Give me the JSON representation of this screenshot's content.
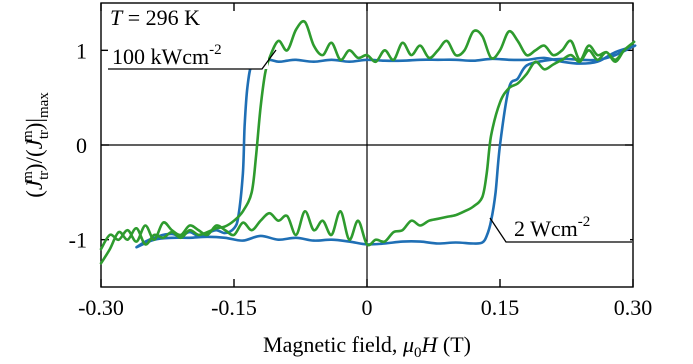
{
  "chart_data": {
    "type": "line",
    "title": "",
    "xlabel": "Magnetic field, μ0H (T)",
    "ylabel": "(J_tr^m)/(J_tr^m)|max",
    "xlim": [
      -0.3,
      0.3
    ],
    "ylim": [
      -1.5,
      1.5
    ],
    "x_ticks": [
      -0.3,
      -0.15,
      0,
      0.15,
      0.3
    ],
    "x_tick_labels": [
      "-0.30",
      "-0.15",
      "0",
      "0.15",
      "0.30"
    ],
    "y_ticks": [
      -1,
      0,
      1
    ],
    "y_tick_labels": [
      "-1",
      "0",
      "1"
    ],
    "grid": false,
    "zero_lines": true,
    "annotations": [
      {
        "text": "T = 296 K",
        "italic_prefix": "T",
        "rest": " = 296 K"
      },
      {
        "text": "100 kWcm-2",
        "base": "100 kWcm",
        "sup": "-2",
        "points_to": "green"
      },
      {
        "text": "2 Wcm-2",
        "base": "2 Wcm",
        "sup": "-2",
        "points_to": "blue"
      }
    ],
    "series": [
      {
        "color": "#1f6fb5",
        "points": [
          [
            -0.26,
            -1.08
          ],
          [
            -0.25,
            -1.02
          ],
          [
            -0.24,
            -0.98
          ],
          [
            -0.23,
            -0.95
          ],
          [
            -0.22,
            -0.94
          ],
          [
            -0.21,
            -0.96
          ],
          [
            -0.2,
            -0.92
          ],
          [
            -0.19,
            -0.96
          ],
          [
            -0.18,
            -0.93
          ],
          [
            -0.17,
            -0.9
          ],
          [
            -0.16,
            -0.93
          ],
          [
            -0.15,
            -0.88
          ],
          [
            -0.145,
            -0.75
          ],
          [
            -0.14,
            -0.3
          ],
          [
            -0.138,
            0.2
          ],
          [
            -0.135,
            0.6
          ],
          [
            -0.13,
            0.85
          ],
          [
            -0.12,
            0.89
          ],
          [
            -0.11,
            0.9
          ],
          [
            -0.1,
            0.88
          ],
          [
            -0.09,
            0.89
          ],
          [
            -0.08,
            0.9
          ],
          [
            -0.06,
            0.88
          ],
          [
            -0.04,
            0.9
          ],
          [
            -0.02,
            0.88
          ],
          [
            0.0,
            0.9
          ],
          [
            0.02,
            0.89
          ],
          [
            0.04,
            0.89
          ],
          [
            0.06,
            0.9
          ],
          [
            0.08,
            0.9
          ],
          [
            0.1,
            0.9
          ],
          [
            0.12,
            0.89
          ],
          [
            0.14,
            0.91
          ],
          [
            0.16,
            0.9
          ],
          [
            0.18,
            0.9
          ],
          [
            0.2,
            0.92
          ],
          [
            0.22,
            0.88
          ],
          [
            0.24,
            0.86
          ],
          [
            0.26,
            0.88
          ],
          [
            0.28,
            0.98
          ],
          [
            0.3,
            1.04
          ],
          [
            0.3,
            1.04
          ],
          [
            0.28,
            0.95
          ],
          [
            0.26,
            0.9
          ],
          [
            0.24,
            0.9
          ],
          [
            0.22,
            0.91
          ],
          [
            0.2,
            0.89
          ],
          [
            0.18,
            0.84
          ],
          [
            0.17,
            0.7
          ],
          [
            0.16,
            0.6
          ],
          [
            0.15,
            0.0
          ],
          [
            0.145,
            -0.5
          ],
          [
            0.14,
            -0.8
          ],
          [
            0.135,
            -0.96
          ],
          [
            0.13,
            -1.03
          ],
          [
            0.12,
            -1.04
          ],
          [
            0.1,
            -1.03
          ],
          [
            0.08,
            -1.04
          ],
          [
            0.06,
            -1.02
          ],
          [
            0.04,
            -1.02
          ],
          [
            0.02,
            -1.04
          ],
          [
            0.0,
            -1.05
          ],
          [
            -0.02,
            -1.02
          ],
          [
            -0.04,
            -1.0
          ],
          [
            -0.06,
            -1.01
          ],
          [
            -0.08,
            -0.98
          ],
          [
            -0.1,
            -1.0
          ],
          [
            -0.12,
            -0.96
          ],
          [
            -0.14,
            -1.01
          ],
          [
            -0.16,
            -0.98
          ],
          [
            -0.18,
            -0.97
          ],
          [
            -0.2,
            -0.98
          ],
          [
            -0.22,
            -0.98
          ],
          [
            -0.24,
            -1.0
          ],
          [
            -0.26,
            -1.08
          ]
        ]
      },
      {
        "color": "#2e9b2e",
        "points": [
          [
            -0.3,
            -1.25
          ],
          [
            -0.29,
            -1.1
          ],
          [
            -0.28,
            -0.92
          ],
          [
            -0.27,
            -1.0
          ],
          [
            -0.26,
            -0.88
          ],
          [
            -0.25,
            -1.05
          ],
          [
            -0.24,
            -0.95
          ],
          [
            -0.23,
            -0.98
          ],
          [
            -0.22,
            -0.92
          ],
          [
            -0.21,
            -0.98
          ],
          [
            -0.2,
            -0.9
          ],
          [
            -0.19,
            -0.95
          ],
          [
            -0.18,
            -0.92
          ],
          [
            -0.17,
            -0.88
          ],
          [
            -0.16,
            -0.86
          ],
          [
            -0.15,
            -0.8
          ],
          [
            -0.14,
            -0.7
          ],
          [
            -0.13,
            -0.5
          ],
          [
            -0.125,
            -0.1
          ],
          [
            -0.12,
            0.4
          ],
          [
            -0.115,
            0.75
          ],
          [
            -0.11,
            0.92
          ],
          [
            -0.1,
            1.1
          ],
          [
            -0.09,
            1.0
          ],
          [
            -0.08,
            1.22
          ],
          [
            -0.07,
            1.3
          ],
          [
            -0.06,
            1.05
          ],
          [
            -0.05,
            0.95
          ],
          [
            -0.04,
            1.08
          ],
          [
            -0.03,
            0.9
          ],
          [
            -0.02,
            1.0
          ],
          [
            -0.01,
            0.92
          ],
          [
            0.0,
            0.95
          ],
          [
            0.01,
            0.88
          ],
          [
            0.02,
            1.0
          ],
          [
            0.03,
            0.9
          ],
          [
            0.04,
            1.08
          ],
          [
            0.05,
            0.95
          ],
          [
            0.06,
            1.05
          ],
          [
            0.07,
            0.92
          ],
          [
            0.08,
            1.0
          ],
          [
            0.09,
            1.1
          ],
          [
            0.1,
            0.95
          ],
          [
            0.11,
            1.0
          ],
          [
            0.12,
            1.2
          ],
          [
            0.13,
            1.15
          ],
          [
            0.14,
            0.92
          ],
          [
            0.15,
            1.0
          ],
          [
            0.16,
            1.2
          ],
          [
            0.17,
            1.1
          ],
          [
            0.18,
            0.95
          ],
          [
            0.19,
            1.0
          ],
          [
            0.2,
            1.05
          ],
          [
            0.21,
            0.95
          ],
          [
            0.22,
            1.0
          ],
          [
            0.23,
            1.1
          ],
          [
            0.24,
            0.9
          ],
          [
            0.25,
            1.05
          ],
          [
            0.26,
            0.95
          ],
          [
            0.27,
            0.98
          ],
          [
            0.28,
            0.9
          ],
          [
            0.29,
            1.0
          ],
          [
            0.3,
            1.08
          ],
          [
            0.3,
            1.08
          ],
          [
            0.29,
            1.0
          ],
          [
            0.28,
            0.88
          ],
          [
            0.27,
            0.98
          ],
          [
            0.26,
            0.9
          ],
          [
            0.25,
            1.0
          ],
          [
            0.24,
            0.88
          ],
          [
            0.23,
            0.95
          ],
          [
            0.22,
            0.9
          ],
          [
            0.21,
            0.85
          ],
          [
            0.2,
            0.8
          ],
          [
            0.19,
            0.88
          ],
          [
            0.18,
            0.75
          ],
          [
            0.17,
            0.65
          ],
          [
            0.16,
            0.6
          ],
          [
            0.15,
            0.45
          ],
          [
            0.14,
            0.1
          ],
          [
            0.135,
            -0.3
          ],
          [
            0.13,
            -0.55
          ],
          [
            0.12,
            -0.65
          ],
          [
            0.11,
            -0.7
          ],
          [
            0.1,
            -0.74
          ],
          [
            0.09,
            -0.76
          ],
          [
            0.08,
            -0.78
          ],
          [
            0.07,
            -0.8
          ],
          [
            0.06,
            -0.85
          ],
          [
            0.05,
            -0.8
          ],
          [
            0.04,
            -0.9
          ],
          [
            0.03,
            -0.92
          ],
          [
            0.02,
            -1.02
          ],
          [
            0.01,
            -1.0
          ],
          [
            0.0,
            -1.05
          ],
          [
            -0.01,
            -0.8
          ],
          [
            -0.02,
            -1.0
          ],
          [
            -0.03,
            -0.7
          ],
          [
            -0.04,
            -0.95
          ],
          [
            -0.05,
            -0.8
          ],
          [
            -0.06,
            -0.9
          ],
          [
            -0.07,
            -0.7
          ],
          [
            -0.08,
            -0.95
          ],
          [
            -0.09,
            -0.75
          ],
          [
            -0.1,
            -0.8
          ],
          [
            -0.11,
            -0.72
          ],
          [
            -0.12,
            -0.8
          ],
          [
            -0.13,
            -0.9
          ],
          [
            -0.14,
            -0.82
          ],
          [
            -0.15,
            -0.95
          ],
          [
            -0.16,
            -0.9
          ],
          [
            -0.17,
            -0.85
          ],
          [
            -0.18,
            -0.95
          ],
          [
            -0.19,
            -0.9
          ],
          [
            -0.2,
            -0.85
          ],
          [
            -0.21,
            -0.95
          ],
          [
            -0.22,
            -0.9
          ],
          [
            -0.23,
            -0.82
          ],
          [
            -0.24,
            -1.0
          ],
          [
            -0.25,
            -0.85
          ],
          [
            -0.26,
            -1.02
          ],
          [
            -0.27,
            -0.9
          ],
          [
            -0.28,
            -1.0
          ],
          [
            -0.29,
            -0.95
          ],
          [
            -0.3,
            -1.1
          ]
        ]
      }
    ]
  }
}
